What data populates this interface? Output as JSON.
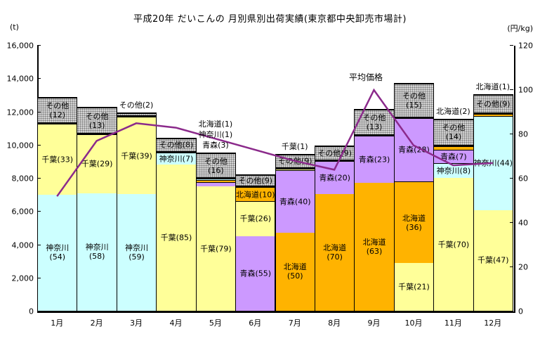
{
  "title": "平成20年 だいこんの 月別県別出荷実績(東京都中央卸売市場計)",
  "left_axis_unit": "(t)",
  "right_axis_unit": "(円/kg)",
  "price_line_label": "平均価格",
  "chart_data": {
    "type": "bar",
    "subtype": "stacked-bar-with-line-overlay",
    "title": "平成20年 だいこんの 月別県別出荷実績(東京都中央卸売市場計)",
    "categories": [
      "1月",
      "2月",
      "3月",
      "4月",
      "5月",
      "6月",
      "7月",
      "8月",
      "9月",
      "10月",
      "11月",
      "12月"
    ],
    "bar_value_unit": "(t)",
    "line_value_unit": "(円/kg)",
    "left_axis": {
      "min": 0,
      "max": 16000,
      "step": 2000
    },
    "right_axis": {
      "min": 0,
      "max": 120,
      "step": 20
    },
    "grid": false,
    "legend_position": "none",
    "note": "segment pct values are the percentage shares printed in the chart; totals_t are monthly shipment totals in tonnes estimated from bar heights",
    "totals_t": [
      12900,
      12300,
      12000,
      10450,
      9550,
      8250,
      9500,
      10000,
      12200,
      13750,
      11600,
      13100
    ],
    "stacks": [
      {
        "month": "1月",
        "total_t": 12900,
        "segments": [
          {
            "name": "神奈川",
            "pct": 54,
            "two_line": true,
            "show_label": true
          },
          {
            "name": "千葉",
            "pct": 33,
            "two_line": false,
            "show_label": true
          },
          {
            "name": "その他",
            "pct": 12,
            "two_line": true,
            "show_label": true
          }
        ],
        "callouts": []
      },
      {
        "month": "2月",
        "total_t": 12300,
        "segments": [
          {
            "name": "神奈川",
            "pct": 58,
            "two_line": true,
            "show_label": true
          },
          {
            "name": "千葉",
            "pct": 29,
            "two_line": false,
            "show_label": true
          },
          {
            "name": "その他",
            "pct": 13,
            "two_line": true,
            "show_label": true
          }
        ],
        "callouts": []
      },
      {
        "month": "3月",
        "total_t": 12000,
        "segments": [
          {
            "name": "神奈川",
            "pct": 59,
            "two_line": true,
            "show_label": true
          },
          {
            "name": "千葉",
            "pct": 39,
            "two_line": false,
            "show_label": true
          },
          {
            "name": "その他",
            "pct": 2,
            "two_line": false,
            "show_label": false
          }
        ],
        "callouts": [
          "その他(2)"
        ]
      },
      {
        "month": "4月",
        "total_t": 10450,
        "segments": [
          {
            "name": "千葉",
            "pct": 85,
            "two_line": false,
            "show_label": true
          },
          {
            "name": "神奈川",
            "pct": 7,
            "two_line": false,
            "show_label": true
          },
          {
            "name": "その他",
            "pct": 8,
            "two_line": false,
            "show_label": true
          }
        ],
        "callouts": []
      },
      {
        "month": "5月",
        "total_t": 9550,
        "segments": [
          {
            "name": "千葉",
            "pct": 79,
            "two_line": false,
            "show_label": true
          },
          {
            "name": "青森",
            "pct": 3,
            "two_line": false,
            "show_label": false
          },
          {
            "name": "北海道",
            "pct": 1,
            "two_line": false,
            "show_label": false
          },
          {
            "name": "神奈川",
            "pct": 1,
            "two_line": false,
            "show_label": false
          },
          {
            "name": "その他",
            "pct": 16,
            "two_line": true,
            "show_label": true
          }
        ],
        "callouts": [
          "青森(3)",
          "神奈川(1)",
          "北海道(1)"
        ]
      },
      {
        "month": "6月",
        "total_t": 8250,
        "segments": [
          {
            "name": "青森",
            "pct": 55,
            "two_line": false,
            "show_label": true
          },
          {
            "name": "千葉",
            "pct": 26,
            "two_line": false,
            "show_label": true
          },
          {
            "name": "北海道",
            "pct": 10,
            "two_line": false,
            "show_label": true
          },
          {
            "name": "その他",
            "pct": 9,
            "two_line": false,
            "show_label": true
          }
        ],
        "callouts": []
      },
      {
        "month": "7月",
        "total_t": 9500,
        "segments": [
          {
            "name": "北海道",
            "pct": 50,
            "two_line": true,
            "show_label": true
          },
          {
            "name": "青森",
            "pct": 40,
            "two_line": false,
            "show_label": true
          },
          {
            "name": "千葉",
            "pct": 1,
            "two_line": false,
            "show_label": false
          },
          {
            "name": "その他",
            "pct": 9,
            "two_line": false,
            "show_label": true
          }
        ],
        "callouts": [
          "千葉(1)"
        ]
      },
      {
        "month": "8月",
        "total_t": 10000,
        "segments": [
          {
            "name": "北海道",
            "pct": 70,
            "two_line": true,
            "show_label": true
          },
          {
            "name": "青森",
            "pct": 20,
            "two_line": false,
            "show_label": true
          },
          {
            "name": "その他",
            "pct": 9,
            "two_line": false,
            "show_label": true
          }
        ],
        "callouts": []
      },
      {
        "month": "9月",
        "total_t": 12200,
        "segments": [
          {
            "name": "北海道",
            "pct": 63,
            "two_line": true,
            "show_label": true
          },
          {
            "name": "青森",
            "pct": 23,
            "two_line": false,
            "show_label": true
          },
          {
            "name": "その他",
            "pct": 13,
            "two_line": true,
            "show_label": true
          }
        ],
        "callouts": []
      },
      {
        "month": "10月",
        "total_t": 13750,
        "segments": [
          {
            "name": "千葉",
            "pct": 21,
            "two_line": false,
            "show_label": true
          },
          {
            "name": "北海道",
            "pct": 36,
            "two_line": true,
            "show_label": true
          },
          {
            "name": "青森",
            "pct": 28,
            "two_line": false,
            "show_label": true
          },
          {
            "name": "その他",
            "pct": 15,
            "two_line": true,
            "show_label": true
          }
        ],
        "callouts": []
      },
      {
        "month": "11月",
        "total_t": 11600,
        "segments": [
          {
            "name": "千葉",
            "pct": 70,
            "two_line": false,
            "show_label": true
          },
          {
            "name": "神奈川",
            "pct": 8,
            "two_line": false,
            "show_label": true
          },
          {
            "name": "青森",
            "pct": 7,
            "two_line": false,
            "show_label": true
          },
          {
            "name": "北海道",
            "pct": 2,
            "two_line": false,
            "show_label": false
          },
          {
            "name": "その他",
            "pct": 14,
            "two_line": true,
            "show_label": true
          }
        ],
        "callouts": [
          "北海道(2)"
        ]
      },
      {
        "month": "12月",
        "total_t": 13100,
        "segments": [
          {
            "name": "千葉",
            "pct": 47,
            "two_line": false,
            "show_label": true
          },
          {
            "name": "神奈川",
            "pct": 44,
            "two_line": false,
            "show_label": true
          },
          {
            "name": "北海道",
            "pct": 1,
            "two_line": false,
            "show_label": false
          },
          {
            "name": "その他",
            "pct": 9,
            "two_line": false,
            "show_label": true
          }
        ],
        "callouts": [
          "北海道(1)"
        ]
      },
      {
        "month": "12月dummy",
        "hidden": true
      }
    ],
    "line": {
      "name": "平均価格",
      "unit": "円/kg",
      "values": [
        52,
        77,
        85,
        83,
        78,
        73,
        68,
        64,
        100,
        75,
        66,
        67
      ],
      "color": "#8B2A8B"
    },
    "colors": {
      "神奈川": "#CCFFFF",
      "千葉": "#FFFF99",
      "青森": "#CC99FF",
      "北海道": "#FFB300",
      "その他": "#D2D2D2",
      "segment_border": "#000000",
      "line": "#8B2A8B"
    }
  }
}
